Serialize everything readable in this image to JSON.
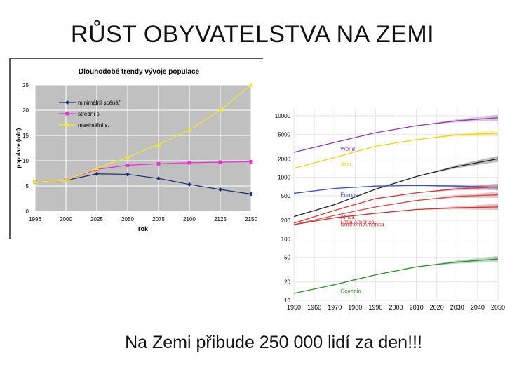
{
  "slide": {
    "title": "RŮST OBYVATELSTVA NA ZEMI",
    "caption": "Na Zemi přibude 250 000 lidí za den!!!"
  },
  "chart_data": [
    {
      "type": "line",
      "title": "Dlouhodobé trendy vývoje populace",
      "xlabel": "rok",
      "ylabel": "populace (mld)",
      "x": [
        1996,
        2000,
        2025,
        2050,
        2075,
        2100,
        2125,
        2150
      ],
      "x_tick_labels": [
        "1996",
        "2000",
        "2025",
        "2050",
        "2075",
        "2100",
        "2125",
        "2150"
      ],
      "ylim": [
        0,
        25
      ],
      "y_ticks": [
        0,
        5,
        10,
        15,
        20,
        25
      ],
      "y_tick_labels": [
        "0",
        "5",
        "10",
        "15",
        "20",
        "25"
      ],
      "grid": true,
      "legend": "top-left",
      "series": [
        {
          "name": "minimální scénář",
          "color": "#1f2d6e",
          "marker": "diamond",
          "values": [
            5.8,
            6.1,
            7.4,
            7.3,
            6.5,
            5.3,
            4.3,
            3.4
          ]
        },
        {
          "name": "střední s.",
          "color": "#e830d0",
          "marker": "square",
          "values": [
            5.8,
            6.1,
            8.3,
            9.1,
            9.4,
            9.6,
            9.7,
            9.8
          ]
        },
        {
          "name": "maximální s.",
          "color": "#f2ea28",
          "marker": "triangle",
          "values": [
            5.8,
            6.1,
            8.5,
            10.7,
            13.2,
            16.1,
            20.0,
            25.0
          ]
        }
      ]
    },
    {
      "type": "line",
      "scale": "log",
      "x_ticks": [
        1950,
        1960,
        1970,
        1980,
        1990,
        2000,
        2010,
        2020,
        2030,
        2040,
        2050
      ],
      "x_tick_labels": [
        "1950",
        "1960",
        "1970",
        "1980",
        "1990",
        "2000",
        "2010",
        "2020",
        "2030",
        "2040",
        "2050"
      ],
      "y_ticks": [
        10,
        20,
        50,
        100,
        200,
        500,
        1000,
        2000,
        5000,
        10000
      ],
      "y_tick_labels": [
        "10",
        "20",
        "50",
        "100",
        "200",
        "500",
        "1000",
        "2000",
        "5000",
        "10000"
      ],
      "ylim": [
        10,
        13000
      ],
      "xlim": [
        1950,
        2050
      ],
      "grid": true,
      "series": [
        {
          "name": "World",
          "color": "#8e3aa8",
          "x": [
            1950,
            1970,
            1990,
            2010,
            2030,
            2050
          ],
          "values": [
            2550,
            3700,
            5300,
            6900,
            8300,
            9300
          ]
        },
        {
          "name": "Asia",
          "color": "#e8d51d",
          "x": [
            1950,
            1970,
            1990,
            2010,
            2030,
            2050
          ],
          "values": [
            1400,
            2100,
            3200,
            4100,
            4900,
            5200
          ]
        },
        {
          "name": "",
          "color": "#222222",
          "x": [
            1950,
            1970,
            1990,
            2010,
            2030,
            2050
          ],
          "values": [
            230,
            360,
            640,
            1030,
            1500,
            2000
          ]
        },
        {
          "name": "Europe",
          "color": "#3a4fc8",
          "x": [
            1950,
            1970,
            1990,
            2010,
            2030,
            2050
          ],
          "values": [
            550,
            660,
            720,
            735,
            720,
            690
          ]
        },
        {
          "name": "Africa",
          "color": "#c04040",
          "x": [
            1950,
            1970,
            1990,
            2010,
            2030,
            2050
          ],
          "values": [
            180,
            290,
            450,
            560,
            650,
            700
          ]
        },
        {
          "name": "Latin America",
          "color": "#d05050",
          "x": [
            1950,
            1970,
            1990,
            2010,
            2030,
            2050
          ],
          "values": [
            170,
            240,
            330,
            420,
            490,
            520
          ]
        },
        {
          "name": "Northern America",
          "color": "#c03838",
          "x": [
            1950,
            1970,
            1990,
            2010,
            2030,
            2050
          ],
          "values": [
            170,
            220,
            260,
            300,
            320,
            330
          ]
        },
        {
          "name": "Oceania",
          "color": "#2e8b2e",
          "x": [
            1950,
            1970,
            1990,
            2010,
            2030,
            2050
          ],
          "values": [
            13,
            18,
            26,
            35,
            42,
            47
          ]
        }
      ]
    }
  ]
}
